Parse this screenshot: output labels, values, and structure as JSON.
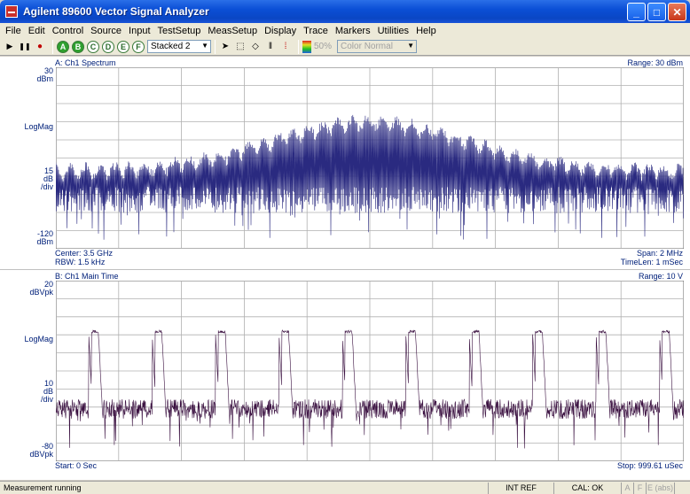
{
  "window": {
    "title": "Agilent 89600 Vector Signal Analyzer",
    "minimize": "_",
    "maximize": "□",
    "close": "✕"
  },
  "menu": [
    "File",
    "Edit",
    "Control",
    "Source",
    "Input",
    "TestSetup",
    "MeasSetup",
    "Display",
    "Trace",
    "Markers",
    "Utilities",
    "Help"
  ],
  "toolbar": {
    "play": "▶",
    "pause": "❚❚",
    "record": "●",
    "traces": [
      "A",
      "B",
      "C",
      "D",
      "E",
      "F"
    ],
    "layout": "Stacked 2",
    "pointer": "➤",
    "box": "⬚",
    "diamond": "◇",
    "bars": "‖",
    "marker": "⁞",
    "opacity": "50%",
    "color_mode": "Color Normal"
  },
  "panelA": {
    "title": "A: Ch1 Spectrum",
    "range": "Range: 30 dBm",
    "y_top_value": "30",
    "y_top_unit": "dBm",
    "y_scale_name": "LogMag",
    "y_div_value": "15",
    "y_div_unit1": "dB",
    "y_div_unit2": "/div",
    "y_bottom_value": "-120",
    "y_bottom_unit": "dBm",
    "center": "Center: 3.5 GHz",
    "rbw": "RBW: 1.5 kHz",
    "span": "Span: 2 MHz",
    "timelen": "TimeLen: 1 mSec",
    "trace_color": "#2a2a80"
  },
  "panelB": {
    "title": "B: Ch1 Main Time",
    "range": "Range: 10  V",
    "y_top_value": "20",
    "y_top_unit": "dBVpk",
    "y_scale_name": "LogMag",
    "y_div_value": "10",
    "y_div_unit1": "dB",
    "y_div_unit2": "/div",
    "y_bottom_value": "-80",
    "y_bottom_unit": "dBVpk",
    "start": "Start: 0  Sec",
    "stop": "Stop: 999.61 uSec",
    "trace_color": "#3a1040"
  },
  "status": {
    "message": "Measurement running",
    "ref": "INT REF",
    "cal": "CAL: OK",
    "a": "A",
    "f": "F",
    "e": "E (abs)"
  }
}
